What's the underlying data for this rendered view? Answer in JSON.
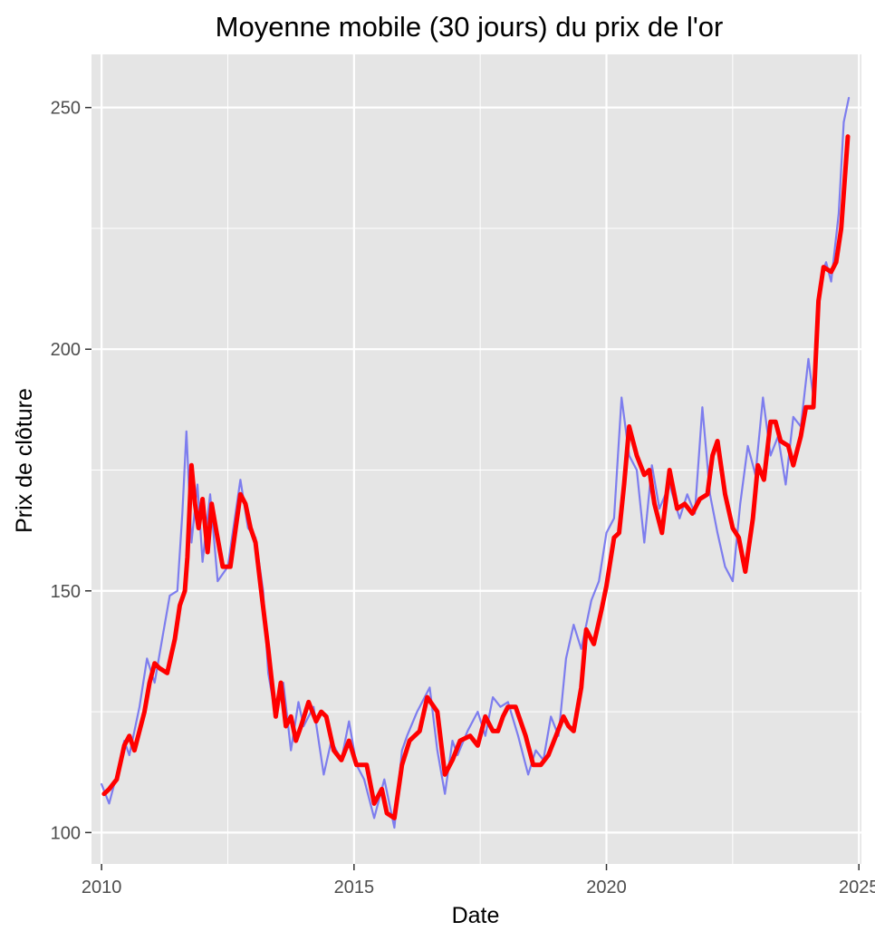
{
  "chart_data": {
    "type": "line",
    "title": "Moyenne mobile (30 jours) du prix de l'or",
    "xlabel": "Date",
    "ylabel": "Prix de clôture",
    "xlim": [
      2009.8,
      2025.05
    ],
    "ylim": [
      93.5,
      261
    ],
    "x_ticks": [
      2010,
      2015,
      2020,
      2025
    ],
    "x_tick_labels": [
      "2010",
      "2015",
      "2020",
      "2025"
    ],
    "y_ticks": [
      100,
      150,
      200,
      250
    ],
    "y_tick_labels": [
      "100",
      "150",
      "200",
      "250"
    ],
    "x_minor": [
      2012.5,
      2017.5,
      2022.5
    ],
    "y_minor": [
      125,
      175,
      225
    ],
    "grid": true,
    "legend": "none",
    "colors": {
      "panel": "#e5e5e5",
      "grid": "#ffffff",
      "raw_series": "#6b6bf0",
      "moving_average": "#ff0000"
    },
    "series": [
      {
        "role": "daily_close",
        "x": [
          2010.0,
          2010.15,
          2010.3,
          2010.45,
          2010.55,
          2010.75,
          2010.9,
          2011.05,
          2011.2,
          2011.35,
          2011.5,
          2011.6,
          2011.68,
          2011.78,
          2011.9,
          2012.0,
          2012.15,
          2012.3,
          2012.5,
          2012.75,
          2012.9,
          2013.05,
          2013.2,
          2013.3,
          2013.45,
          2013.6,
          2013.75,
          2013.9,
          2014.0,
          2014.2,
          2014.4,
          2014.55,
          2014.75,
          2014.9,
          2015.05,
          2015.2,
          2015.4,
          2015.6,
          2015.8,
          2015.95,
          2016.05,
          2016.25,
          2016.5,
          2016.65,
          2016.8,
          2016.95,
          2017.05,
          2017.25,
          2017.45,
          2017.6,
          2017.75,
          2017.9,
          2018.05,
          2018.25,
          2018.45,
          2018.6,
          2018.75,
          2018.9,
          2019.05,
          2019.2,
          2019.35,
          2019.5,
          2019.7,
          2019.85,
          2020.0,
          2020.15,
          2020.3,
          2020.45,
          2020.6,
          2020.75,
          2020.9,
          2021.05,
          2021.25,
          2021.45,
          2021.6,
          2021.75,
          2021.9,
          2022.05,
          2022.2,
          2022.35,
          2022.5,
          2022.65,
          2022.8,
          2022.95,
          2023.1,
          2023.25,
          2023.4,
          2023.55,
          2023.7,
          2023.85,
          2024.0,
          2024.1,
          2024.25,
          2024.35,
          2024.45,
          2024.6,
          2024.7,
          2024.8
        ],
        "values": [
          110,
          106,
          112,
          119,
          116,
          126,
          136,
          131,
          140,
          149,
          150,
          166,
          183,
          160,
          172,
          156,
          170,
          152,
          155,
          173,
          163,
          161,
          150,
          133,
          124,
          131,
          117,
          127,
          122,
          126,
          112,
          119,
          115,
          123,
          114,
          111,
          103,
          111,
          101,
          117,
          120,
          125,
          130,
          117,
          108,
          119,
          116,
          121,
          125,
          120,
          128,
          126,
          127,
          120,
          112,
          117,
          115,
          124,
          120,
          136,
          143,
          138,
          148,
          152,
          162,
          165,
          190,
          178,
          175,
          160,
          176,
          167,
          172,
          165,
          170,
          166,
          188,
          170,
          162,
          155,
          152,
          168,
          180,
          174,
          190,
          178,
          182,
          172,
          186,
          184,
          198,
          190,
          215,
          218,
          214,
          228,
          247,
          252
        ]
      },
      {
        "role": "moving_average_30d",
        "x": [
          2010.05,
          2010.15,
          2010.3,
          2010.45,
          2010.55,
          2010.65,
          2010.85,
          2010.95,
          2011.05,
          2011.15,
          2011.3,
          2011.45,
          2011.55,
          2011.65,
          2011.7,
          2011.78,
          2011.85,
          2011.92,
          2012.0,
          2012.1,
          2012.18,
          2012.28,
          2012.4,
          2012.55,
          2012.75,
          2012.85,
          2012.95,
          2013.05,
          2013.15,
          2013.3,
          2013.45,
          2013.55,
          2013.65,
          2013.75,
          2013.85,
          2013.95,
          2014.1,
          2014.25,
          2014.35,
          2014.45,
          2014.6,
          2014.75,
          2014.9,
          2015.05,
          2015.25,
          2015.4,
          2015.55,
          2015.65,
          2015.8,
          2015.95,
          2016.1,
          2016.3,
          2016.45,
          2016.65,
          2016.8,
          2016.95,
          2017.1,
          2017.3,
          2017.45,
          2017.6,
          2017.75,
          2017.85,
          2017.95,
          2018.05,
          2018.2,
          2018.4,
          2018.55,
          2018.7,
          2018.85,
          2019.0,
          2019.15,
          2019.25,
          2019.35,
          2019.5,
          2019.6,
          2019.75,
          2019.9,
          2020.0,
          2020.15,
          2020.25,
          2020.35,
          2020.45,
          2020.6,
          2020.75,
          2020.85,
          2020.95,
          2021.1,
          2021.25,
          2021.4,
          2021.55,
          2021.7,
          2021.85,
          2022.0,
          2022.1,
          2022.2,
          2022.35,
          2022.5,
          2022.62,
          2022.75,
          2022.9,
          2023.0,
          2023.12,
          2023.25,
          2023.35,
          2023.45,
          2023.6,
          2023.7,
          2023.85,
          2023.95,
          2024.1,
          2024.2,
          2024.3,
          2024.45,
          2024.55,
          2024.65,
          2024.78
        ],
        "values": [
          108,
          109,
          111,
          118,
          120,
          117,
          125,
          131,
          135,
          134,
          133,
          140,
          147,
          150,
          157,
          176,
          168,
          163,
          169,
          158,
          168,
          162,
          155,
          155,
          170,
          168,
          163,
          160,
          151,
          138,
          124,
          131,
          122,
          124,
          119,
          122,
          127,
          123,
          125,
          124,
          117,
          115,
          119,
          114,
          114,
          106,
          109,
          104,
          103,
          114,
          119,
          121,
          128,
          125,
          112,
          115,
          119,
          120,
          118,
          124,
          121,
          121,
          124,
          126,
          126,
          120,
          114,
          114,
          116,
          120,
          124,
          122,
          121,
          130,
          142,
          139,
          146,
          151,
          161,
          162,
          172,
          184,
          178,
          174,
          175,
          168,
          162,
          175,
          167,
          168,
          166,
          169,
          170,
          178,
          181,
          170,
          163,
          161,
          154,
          165,
          176,
          173,
          185,
          185,
          181,
          180,
          176,
          182,
          188,
          188,
          210,
          217,
          216,
          218,
          225,
          244
        ]
      }
    ]
  }
}
